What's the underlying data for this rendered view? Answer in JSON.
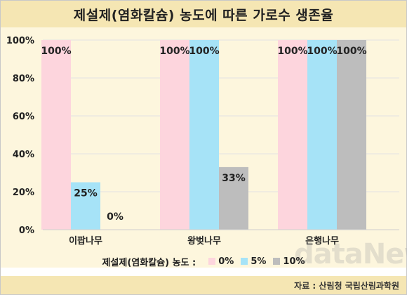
{
  "title": "제설제(염화칼슘) 농도에 따른 가로수 생존율",
  "legend_title": "제설제(염화칼슘) 농도 :",
  "source": "자료 : 산림청 국립산림과학원",
  "watermark": "dataNews",
  "colors": {
    "title_bg": "#f5e6b3",
    "plot_bg": "#fdf6dd",
    "series": [
      "#fdd5dd",
      "#a6e3f7",
      "#bdbdbd"
    ]
  },
  "chart_data": {
    "type": "bar",
    "title": "제설제(염화칼슘) 농도에 따른 가로수 생존율",
    "categories": [
      "이팝나무",
      "왕벚나무",
      "은행나무"
    ],
    "series": [
      {
        "name": "0%",
        "values": [
          100,
          100,
          100
        ],
        "labels": [
          "100%",
          "100%",
          "100%"
        ]
      },
      {
        "name": "5%",
        "values": [
          25,
          100,
          100
        ],
        "labels": [
          "25%",
          "100%",
          "100%"
        ]
      },
      {
        "name": "10%",
        "values": [
          0,
          33,
          100
        ],
        "labels": [
          "0%",
          "33%",
          "100%"
        ]
      }
    ],
    "yticks": [
      "0%",
      "20%",
      "40%",
      "60%",
      "80%",
      "100%"
    ],
    "ylim": [
      0,
      100
    ],
    "grid": true,
    "legend_position": "bottom"
  }
}
